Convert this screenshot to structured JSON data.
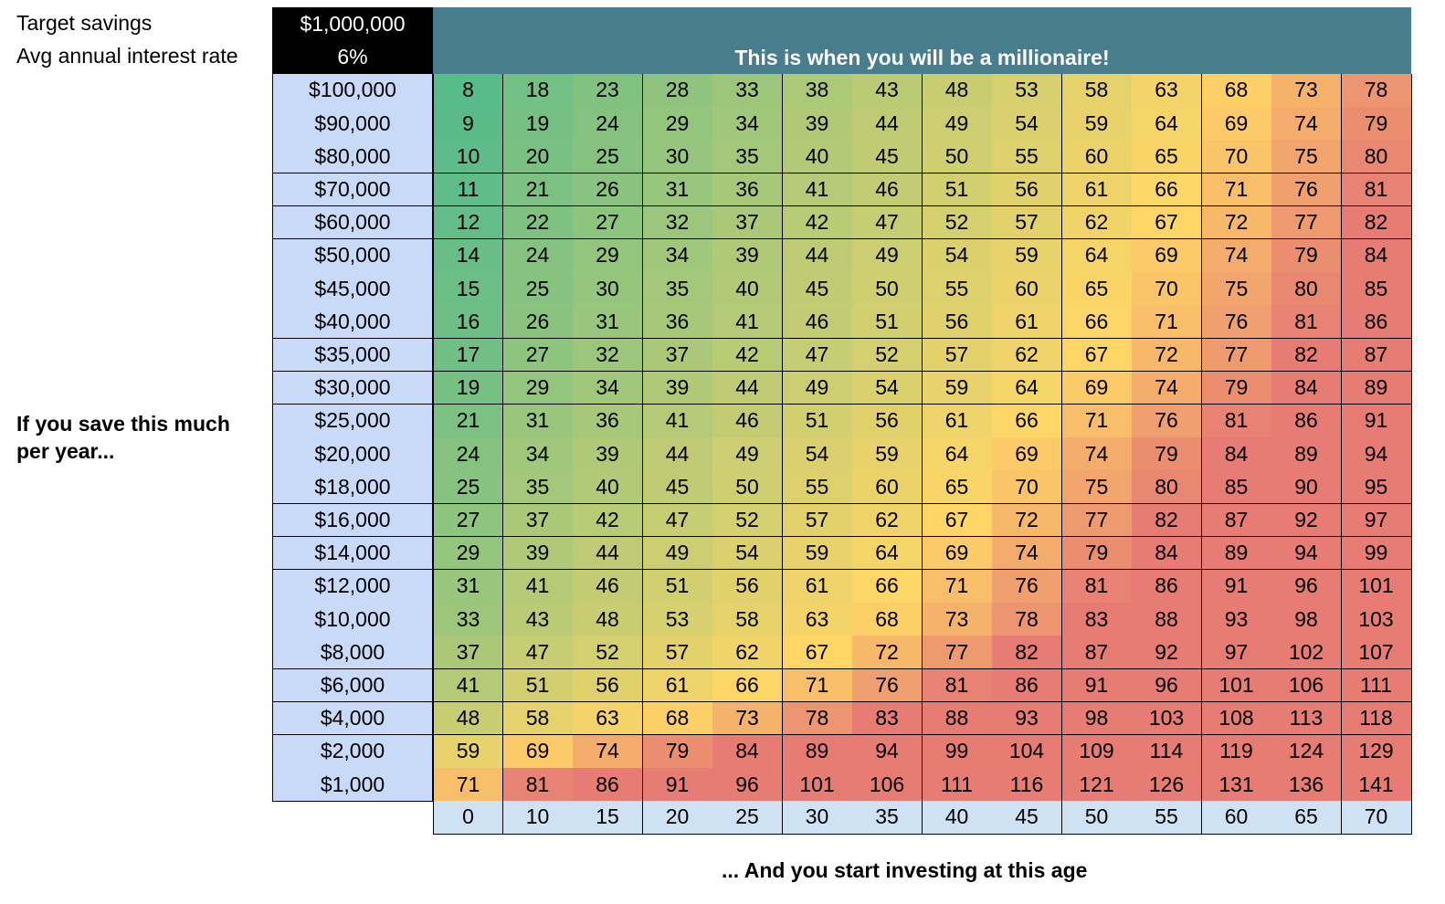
{
  "labels": {
    "target_savings": "Target savings",
    "interest_rate": "Avg annual interest rate",
    "save_prompt": "If you save this much per year...",
    "age_prompt": "... And you start investing at this age",
    "banner": "This is when you will be a millionaire!"
  },
  "inputs": {
    "target_savings_value": "$1,000,000",
    "interest_rate_value": "6%"
  },
  "colors": {
    "banner": "#477d8c",
    "row_header": "#c9daf8",
    "col_header": "#cfe2f3",
    "scale_low": "#57bb8a",
    "scale_mid": "#ffd666",
    "scale_high": "#e67c73"
  },
  "chart_data": {
    "type": "heatmap",
    "title": "This is when you will be a millionaire!",
    "row_labels": [
      "$100,000",
      "$90,000",
      "$80,000",
      "$70,000",
      "$60,000",
      "$50,000",
      "$45,000",
      "$40,000",
      "$35,000",
      "$30,000",
      "$25,000",
      "$20,000",
      "$18,000",
      "$16,000",
      "$14,000",
      "$12,000",
      "$10,000",
      "$8,000",
      "$6,000",
      "$4,000",
      "$2,000",
      "$1,000"
    ],
    "col_labels": [
      "0",
      "10",
      "15",
      "20",
      "25",
      "30",
      "35",
      "40",
      "45",
      "50",
      "55",
      "60",
      "65",
      "70"
    ],
    "values": [
      [
        8,
        18,
        23,
        28,
        33,
        38,
        43,
        48,
        53,
        58,
        63,
        68,
        73,
        78
      ],
      [
        9,
        19,
        24,
        29,
        34,
        39,
        44,
        49,
        54,
        59,
        64,
        69,
        74,
        79
      ],
      [
        10,
        20,
        25,
        30,
        35,
        40,
        45,
        50,
        55,
        60,
        65,
        70,
        75,
        80
      ],
      [
        11,
        21,
        26,
        31,
        36,
        41,
        46,
        51,
        56,
        61,
        66,
        71,
        76,
        81
      ],
      [
        12,
        22,
        27,
        32,
        37,
        42,
        47,
        52,
        57,
        62,
        67,
        72,
        77,
        82
      ],
      [
        14,
        24,
        29,
        34,
        39,
        44,
        49,
        54,
        59,
        64,
        69,
        74,
        79,
        84
      ],
      [
        15,
        25,
        30,
        35,
        40,
        45,
        50,
        55,
        60,
        65,
        70,
        75,
        80,
        85
      ],
      [
        16,
        26,
        31,
        36,
        41,
        46,
        51,
        56,
        61,
        66,
        71,
        76,
        81,
        86
      ],
      [
        17,
        27,
        32,
        37,
        42,
        47,
        52,
        57,
        62,
        67,
        72,
        77,
        82,
        87
      ],
      [
        19,
        29,
        34,
        39,
        44,
        49,
        54,
        59,
        64,
        69,
        74,
        79,
        84,
        89
      ],
      [
        21,
        31,
        36,
        41,
        46,
        51,
        56,
        61,
        66,
        71,
        76,
        81,
        86,
        91
      ],
      [
        24,
        34,
        39,
        44,
        49,
        54,
        59,
        64,
        69,
        74,
        79,
        84,
        89,
        94
      ],
      [
        25,
        35,
        40,
        45,
        50,
        55,
        60,
        65,
        70,
        75,
        80,
        85,
        90,
        95
      ],
      [
        27,
        37,
        42,
        47,
        52,
        57,
        62,
        67,
        72,
        77,
        82,
        87,
        92,
        97
      ],
      [
        29,
        39,
        44,
        49,
        54,
        59,
        64,
        69,
        74,
        79,
        84,
        89,
        94,
        99
      ],
      [
        31,
        41,
        46,
        51,
        56,
        61,
        66,
        71,
        76,
        81,
        86,
        91,
        96,
        101
      ],
      [
        33,
        43,
        48,
        53,
        58,
        63,
        68,
        73,
        78,
        83,
        88,
        93,
        98,
        103
      ],
      [
        37,
        47,
        52,
        57,
        62,
        67,
        72,
        77,
        82,
        87,
        92,
        97,
        102,
        107
      ],
      [
        41,
        51,
        56,
        61,
        66,
        71,
        76,
        81,
        86,
        91,
        96,
        101,
        106,
        111
      ],
      [
        48,
        58,
        63,
        68,
        73,
        78,
        83,
        88,
        93,
        98,
        103,
        108,
        113,
        118
      ],
      [
        59,
        69,
        74,
        79,
        84,
        89,
        94,
        99,
        104,
        109,
        114,
        119,
        124,
        129
      ],
      [
        71,
        81,
        86,
        91,
        96,
        101,
        106,
        111,
        116,
        121,
        126,
        131,
        136,
        141
      ]
    ]
  }
}
